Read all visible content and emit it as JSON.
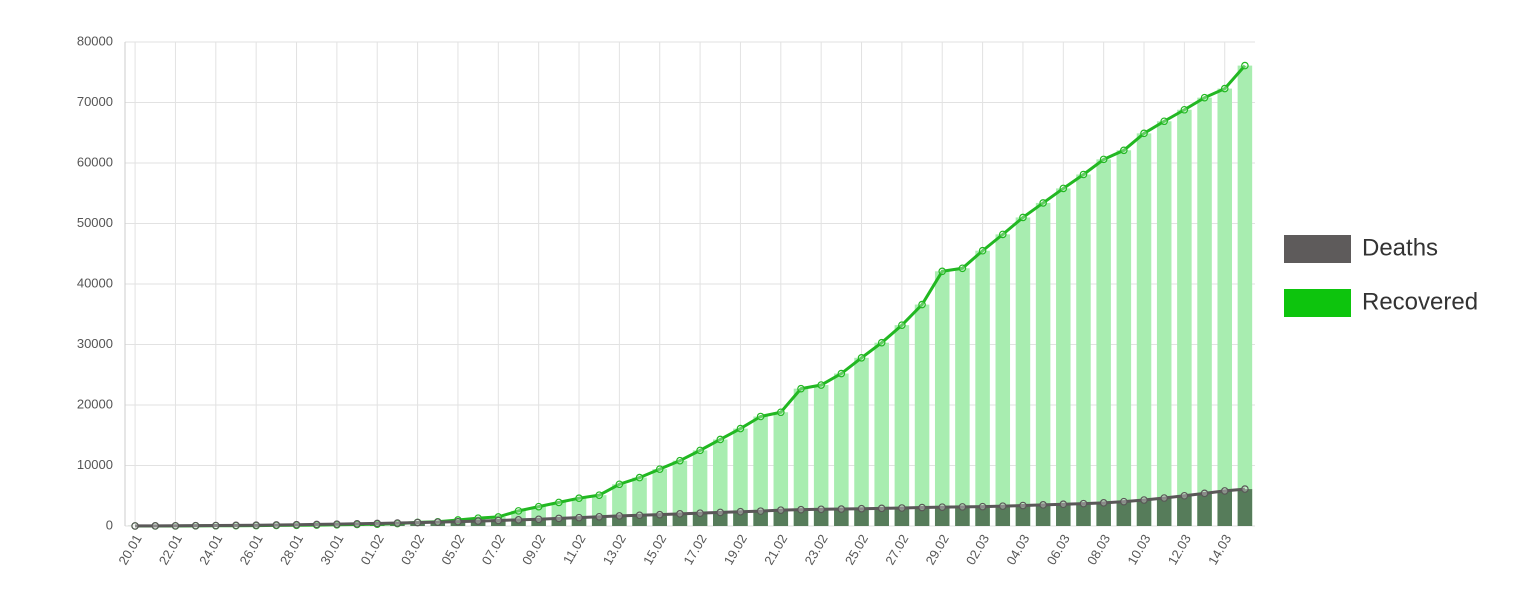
{
  "chart_data": {
    "type": "bar-line",
    "categories": [
      "20.01",
      null,
      "22.01",
      null,
      "24.01",
      null,
      "26.01",
      null,
      "28.01",
      null,
      "30.01",
      null,
      "01.02",
      null,
      "03.02",
      null,
      "05.02",
      null,
      "07.02",
      null,
      "09.02",
      null,
      "11.02",
      null,
      "13.02",
      null,
      "15.02",
      null,
      "17.02",
      null,
      "19.02",
      null,
      "21.02",
      null,
      "23.02",
      null,
      "25.02",
      null,
      "27.02",
      null,
      "29.02",
      null,
      "02.03",
      null,
      "04.03",
      null,
      "06.03",
      null,
      "08.03",
      null,
      "10.03",
      null,
      "12.03",
      null,
      "14.03",
      null
    ],
    "series": [
      {
        "name": "Recovered",
        "color": "#0dc40d",
        "line_color": "#22b822",
        "bar_color": "#a8edb0",
        "values": [
          0,
          0,
          0,
          30,
          40,
          50,
          60,
          100,
          120,
          150,
          200,
          250,
          300,
          400,
          600,
          700,
          1000,
          1300,
          1500,
          2500,
          3200,
          3900,
          4600,
          5100,
          6900,
          8000,
          9400,
          10800,
          12500,
          14300,
          16100,
          18100,
          18800,
          22700,
          23300,
          25200,
          27800,
          30300,
          33200,
          36600,
          42100,
          42600,
          45500,
          48200,
          51000,
          53400,
          55800,
          58100,
          60600,
          62100,
          64900,
          66900,
          68800,
          70800,
          72300,
          76100
        ]
      },
      {
        "name": "Deaths",
        "color": "#5e5b5b",
        "line_color": "#5a5858",
        "bar_color": "#567c5a",
        "values": [
          17,
          25,
          41,
          56,
          80,
          106,
          132,
          170,
          213,
          259,
          304,
          362,
          426,
          492,
          565,
          638,
          724,
          813,
          910,
          1018,
          1115,
          1261,
          1383,
          1526,
          1669,
          1775,
          1873,
          2009,
          2126,
          2247,
          2360,
          2460,
          2618,
          2699,
          2763,
          2800,
          2858,
          2923,
          2977,
          3050,
          3117,
          3160,
          3202,
          3285,
          3387,
          3494,
          3599,
          3700,
          3827,
          4025,
          4296,
          4628,
          5000,
          5400,
          5800,
          6100
        ]
      }
    ],
    "ylim": [
      0,
      80000
    ],
    "yticks": [
      0,
      10000,
      20000,
      30000,
      40000,
      50000,
      60000,
      70000,
      80000
    ],
    "grid": true,
    "legend": "right"
  }
}
